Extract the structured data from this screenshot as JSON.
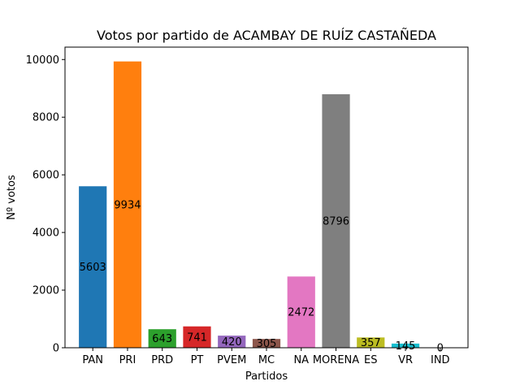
{
  "chart_data": {
    "type": "bar",
    "title": "Votos por partido de ACAMBAY DE RUÍZ CASTAÑEDA",
    "xlabel": "Partidos",
    "ylabel": "Nº votos",
    "categories": [
      "PAN",
      "PRI",
      "PRD",
      "PT",
      "PVEM",
      "MC",
      "NA",
      "MORENA",
      "ES",
      "VR",
      "IND"
    ],
    "values": [
      5603,
      9934,
      643,
      741,
      420,
      305,
      2472,
      8796,
      357,
      145,
      0
    ],
    "value_labels": [
      "5603",
      "9934",
      "643",
      "741",
      "420",
      "305",
      "2472",
      "8796",
      "357",
      "145",
      "0"
    ],
    "colors": [
      "#1f77b4",
      "#ff7f0e",
      "#2ca02c",
      "#d62728",
      "#9467bd",
      "#8c564b",
      "#e377c2",
      "#7f7f7f",
      "#bcbd22",
      "#17becf",
      "#1f77b4"
    ],
    "ylim": [
      0,
      10430.7
    ],
    "yticks": [
      0,
      2000,
      4000,
      6000,
      8000,
      10000
    ],
    "ytick_labels": [
      "0",
      "2000",
      "4000",
      "6000",
      "8000",
      "10000"
    ],
    "grid": false,
    "legend": "none"
  }
}
